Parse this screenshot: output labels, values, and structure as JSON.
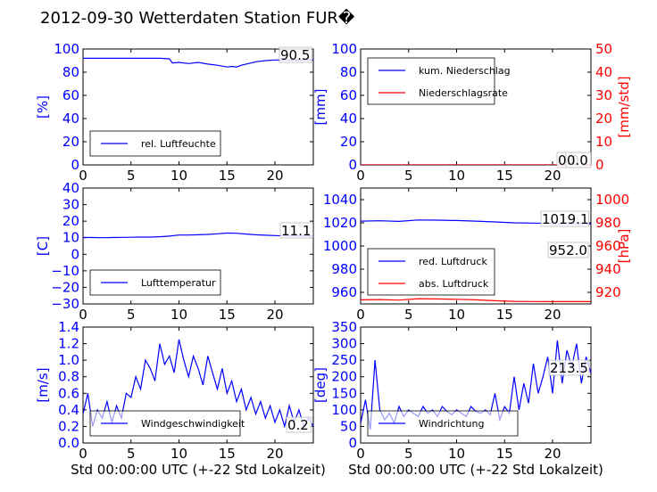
{
  "title": "2012-09-30 Wetterdaten Station FUR�",
  "colors": {
    "blue": "#0000ff",
    "red": "#ff0000",
    "black": "#000000"
  },
  "chart_data": [
    {
      "id": "humidity",
      "type": "line",
      "xlabel": "",
      "ylabel": "[%]",
      "xlim": [
        0,
        24
      ],
      "ylim": [
        0,
        100
      ],
      "xticks": [
        "0",
        "5",
        "10",
        "15",
        "20"
      ],
      "yticks": [
        "0",
        "20",
        "40",
        "60",
        "80",
        "100"
      ],
      "legend": {
        "placement": "lower-left",
        "entries": [
          "rel. Luftfeuchte"
        ]
      },
      "annotation": "90.5",
      "series": [
        {
          "name": "rel. Luftfeuchte",
          "color": "blue",
          "x": [
            0,
            2,
            4,
            6,
            8,
            9,
            9.3,
            10,
            11,
            12,
            13,
            14,
            15,
            15.5,
            16,
            16.5,
            17,
            18,
            19,
            20,
            22,
            24
          ],
          "y": [
            92,
            92,
            92,
            92,
            92,
            91.5,
            88,
            88.5,
            87.5,
            88.5,
            87,
            86,
            84.5,
            85,
            84.5,
            86,
            87,
            89,
            90,
            90.5,
            90.5,
            90.5
          ]
        }
      ]
    },
    {
      "id": "precipitation",
      "type": "line",
      "xlabel": "",
      "ylabel": "[mm]",
      "ylabel_right": "[mm/std]",
      "xlim": [
        0,
        24
      ],
      "ylim": [
        0,
        100
      ],
      "ylim_right": [
        0,
        50
      ],
      "xticks": [
        "0",
        "5",
        "10",
        "15",
        "20"
      ],
      "yticks": [
        "0",
        "20",
        "40",
        "60",
        "80",
        "100"
      ],
      "yticks_right": [
        "0",
        "10",
        "20",
        "30",
        "40",
        "50"
      ],
      "legend": {
        "placement": "upper-left",
        "entries": [
          "kum. Niederschlag",
          "Niederschlagsrate"
        ]
      },
      "annotation": "0.0",
      "annotation2": "0.0",
      "series": [
        {
          "name": "kum. Niederschlag",
          "color": "blue",
          "x": [
            0,
            24
          ],
          "y": [
            0,
            0
          ]
        },
        {
          "name": "Niederschlagsrate",
          "color": "red",
          "x": [
            0,
            24
          ],
          "y": [
            0,
            0
          ]
        }
      ]
    },
    {
      "id": "temperature",
      "type": "line",
      "xlabel": "",
      "ylabel": "[C]",
      "xlim": [
        0,
        24
      ],
      "ylim": [
        -30,
        40
      ],
      "xticks": [
        "0",
        "5",
        "10",
        "15",
        "20"
      ],
      "yticks": [
        "−30",
        "−20",
        "−10",
        "0",
        "10",
        "20",
        "30",
        "40"
      ],
      "legend": {
        "placement": "lower-left",
        "entries": [
          "Lufttemperatur"
        ]
      },
      "annotation": "11.1",
      "series": [
        {
          "name": "Lufttemperatur",
          "color": "blue",
          "x": [
            0,
            1,
            2,
            3,
            4,
            5,
            6,
            7,
            8,
            9,
            10,
            11,
            12,
            13,
            14,
            15,
            16,
            17,
            18,
            19,
            20,
            21,
            22,
            23,
            24
          ],
          "y": [
            10.2,
            10.1,
            10.0,
            10.1,
            10.2,
            10.3,
            10.4,
            10.4,
            10.6,
            11.0,
            11.6,
            11.6,
            11.8,
            12.0,
            12.4,
            12.8,
            12.7,
            12.2,
            11.8,
            11.5,
            11.3,
            11.1,
            11.1,
            11.1,
            11.1
          ]
        }
      ]
    },
    {
      "id": "pressure",
      "type": "line",
      "xlabel": "",
      "ylabel": "",
      "ylabel_right": "[hPa]",
      "xlim": [
        0,
        24
      ],
      "ylim": [
        950,
        1050
      ],
      "ylim_right": [
        910,
        1010
      ],
      "xticks": [
        "0",
        "5",
        "10",
        "15",
        "20"
      ],
      "yticks": [
        "960",
        "980",
        "1000",
        "1020",
        "1040"
      ],
      "yticks_right": [
        "920",
        "940",
        "960",
        "980",
        "1000"
      ],
      "legend": {
        "placement": "lower-left",
        "entries": [
          "red. Luftdruck",
          "abs. Luftdruck"
        ]
      },
      "annotation": "1019.1",
      "annotation2": "952.0",
      "series": [
        {
          "name": "red. Luftdruck",
          "color": "blue",
          "x": [
            0,
            2,
            4,
            6,
            8,
            10,
            12,
            14,
            16,
            18,
            20,
            22,
            24
          ],
          "y": [
            1021.5,
            1021.8,
            1021.2,
            1022.5,
            1022.3,
            1022.0,
            1021.5,
            1020.8,
            1020.0,
            1019.8,
            1019.5,
            1019.2,
            1019.1
          ]
        },
        {
          "name": "abs. Luftdruck",
          "color": "red",
          "x": [
            0,
            2,
            4,
            6,
            8,
            10,
            12,
            14,
            16,
            18,
            20,
            22,
            24
          ],
          "y": [
            953.5,
            953.8,
            953.3,
            954.5,
            954.3,
            954.0,
            953.5,
            952.8,
            952.2,
            952.1,
            952.0,
            952.0,
            952.0
          ]
        }
      ]
    },
    {
      "id": "windspeed",
      "type": "line",
      "xlabel": "Std 00:00:00 UTC (+-22 Std Lokalzeit)",
      "ylabel": "[m/s]",
      "xlim": [
        0,
        24
      ],
      "ylim": [
        0,
        1.4
      ],
      "xticks": [
        "0",
        "5",
        "10",
        "15",
        "20"
      ],
      "yticks": [
        "0.0",
        "0.2",
        "0.4",
        "0.6",
        "0.8",
        "1.0",
        "1.2",
        "1.4"
      ],
      "legend": {
        "placement": "lower-center",
        "entries": [
          "Windgeschwindigkeit"
        ]
      },
      "annotation": "0.2",
      "series": [
        {
          "name": "Windgeschwindigkeit",
          "color": "blue",
          "x": [
            0,
            0.5,
            1,
            1.5,
            2,
            2.5,
            3,
            3.5,
            4,
            4.5,
            5,
            5.5,
            6,
            6.5,
            7,
            7.5,
            8,
            8.5,
            9,
            9.5,
            10,
            10.5,
            11,
            11.5,
            12,
            12.5,
            13,
            13.5,
            14,
            14.5,
            15,
            15.5,
            16,
            16.5,
            17,
            17.5,
            18,
            18.5,
            19,
            19.5,
            20,
            20.5,
            21,
            21.5,
            22,
            22.5,
            23,
            23.5,
            24
          ],
          "y": [
            0.35,
            0.6,
            0.2,
            0.4,
            0.3,
            0.5,
            0.25,
            0.45,
            0.3,
            0.6,
            0.55,
            0.8,
            0.65,
            1.0,
            0.9,
            0.75,
            1.2,
            0.95,
            1.05,
            0.85,
            1.25,
            1.0,
            0.8,
            1.05,
            0.9,
            0.7,
            1.05,
            0.85,
            0.65,
            0.9,
            0.6,
            0.75,
            0.5,
            0.65,
            0.4,
            0.55,
            0.35,
            0.5,
            0.3,
            0.45,
            0.25,
            0.4,
            0.2,
            0.45,
            0.25,
            0.4,
            0.2,
            0.3,
            0.2
          ]
        }
      ]
    },
    {
      "id": "winddirection",
      "type": "line",
      "xlabel": "Std 00:00:00 UTC (+-22 Std Lokalzeit)",
      "ylabel": "[deg]",
      "xlim": [
        0,
        24
      ],
      "ylim": [
        0,
        350
      ],
      "xticks": [
        "0",
        "5",
        "10",
        "15",
        "20"
      ],
      "yticks": [
        "0",
        "50",
        "100",
        "150",
        "200",
        "250",
        "300",
        "350"
      ],
      "legend": {
        "placement": "lower-center",
        "entries": [
          "Windrichtung"
        ]
      },
      "annotation": "213.5",
      "series": [
        {
          "name": "Windrichtung",
          "color": "blue",
          "x": [
            0,
            0.5,
            1,
            1.5,
            2,
            2.5,
            3,
            3.5,
            4,
            4.5,
            5,
            5.5,
            6,
            6.5,
            7,
            7.5,
            8,
            8.5,
            9,
            9.5,
            10,
            10.5,
            11,
            11.5,
            12,
            12.5,
            13,
            13.5,
            14,
            14.5,
            15,
            15.5,
            16,
            16.5,
            17,
            17.5,
            18,
            18.5,
            19,
            19.5,
            20,
            20.5,
            21,
            21.5,
            22,
            22.5,
            23,
            23.5,
            24
          ],
          "y": [
            60,
            130,
            40,
            250,
            100,
            70,
            90,
            60,
            110,
            80,
            100,
            90,
            80,
            110,
            90,
            100,
            80,
            110,
            95,
            85,
            100,
            90,
            80,
            110,
            95,
            90,
            100,
            85,
            150,
            70,
            110,
            90,
            200,
            100,
            180,
            120,
            240,
            150,
            200,
            260,
            150,
            310,
            180,
            280,
            230,
            300,
            180,
            260,
            210
          ]
        }
      ]
    }
  ]
}
